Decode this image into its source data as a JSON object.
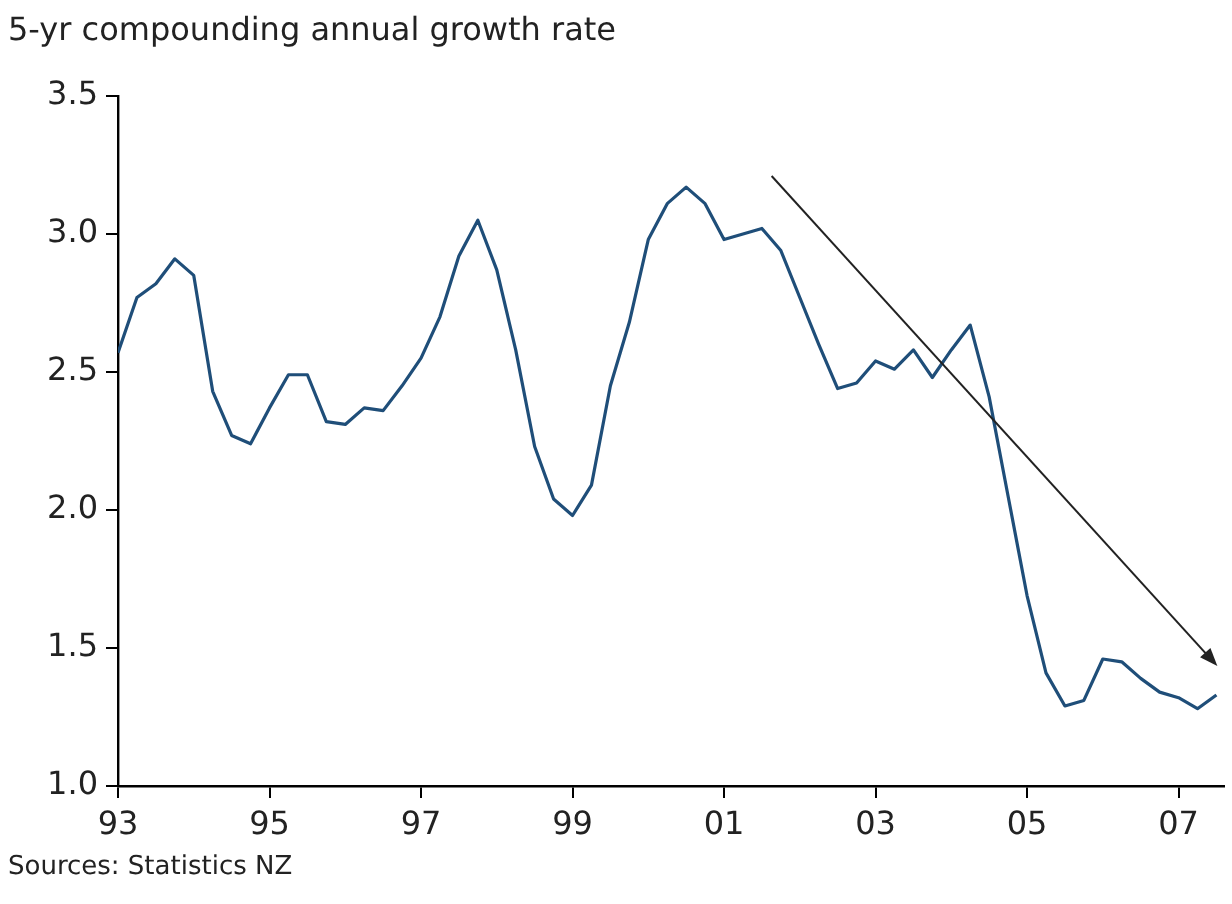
{
  "chart_data": {
    "type": "line",
    "title": "5-yr compounding annual growth rate",
    "x": [
      1993,
      1993.25,
      1993.5,
      1993.75,
      1994,
      1994.25,
      1994.5,
      1994.75,
      1995,
      1995.25,
      1995.5,
      1995.75,
      1996,
      1996.25,
      1996.5,
      1996.75,
      1997,
      1997.25,
      1997.5,
      1997.75,
      1998,
      1998.25,
      1998.5,
      1998.75,
      1999,
      1999.25,
      1999.5,
      1999.75,
      2000,
      2000.25,
      2000.5,
      2000.75,
      2001,
      2001.25,
      2001.5,
      2001.75,
      2002,
      2002.25,
      2002.5,
      2002.75,
      2003,
      2003.25,
      2003.5,
      2003.75,
      2004,
      2004.25,
      2004.5,
      2004.75,
      2005,
      2005.25,
      2005.5,
      2005.75,
      2006,
      2006.25,
      2006.5,
      2006.75,
      2007,
      2007.25,
      2007.5
    ],
    "series": [
      {
        "color": "#1f4e79",
        "values": [
          2.57,
          2.77,
          2.82,
          2.91,
          2.85,
          2.43,
          2.27,
          2.24,
          2.37,
          2.49,
          2.49,
          2.32,
          2.31,
          2.37,
          2.36,
          2.45,
          2.55,
          2.7,
          2.92,
          3.05,
          2.87,
          2.58,
          2.23,
          2.04,
          1.98,
          2.09,
          2.45,
          2.68,
          2.98,
          3.11,
          3.17,
          3.11,
          2.98,
          3.0,
          3.02,
          2.94,
          2.77,
          2.6,
          2.44,
          2.46,
          2.54,
          2.51,
          2.58,
          2.48,
          2.58,
          2.67,
          2.41,
          2.05,
          1.69,
          1.41,
          1.29,
          1.31,
          1.46,
          1.45,
          1.39,
          1.34,
          1.32,
          1.28,
          1.33
        ]
      }
    ],
    "xlim": [
      1993,
      2007.6
    ],
    "xticks": [
      {
        "value": 1993,
        "label": "93"
      },
      {
        "value": 1995,
        "label": "95"
      },
      {
        "value": 1997,
        "label": "97"
      },
      {
        "value": 1999,
        "label": "99"
      },
      {
        "value": 2001,
        "label": "01"
      },
      {
        "value": 2003,
        "label": "03"
      },
      {
        "value": 2005,
        "label": "05"
      },
      {
        "value": 2007,
        "label": "07"
      }
    ],
    "ylim": [
      1.0,
      3.5
    ],
    "yticks": [
      {
        "value": 1.0,
        "label": "1.0"
      },
      {
        "value": 1.5,
        "label": "1.5"
      },
      {
        "value": 2.0,
        "label": "2.0"
      },
      {
        "value": 2.5,
        "label": "2.5"
      },
      {
        "value": 3.0,
        "label": "3.0"
      },
      {
        "value": 3.5,
        "label": "3.5"
      }
    ],
    "grid": false,
    "legend": false,
    "marker": "none",
    "line_style": "solid",
    "annotations": [
      "Sources: Statistics NZ"
    ]
  }
}
